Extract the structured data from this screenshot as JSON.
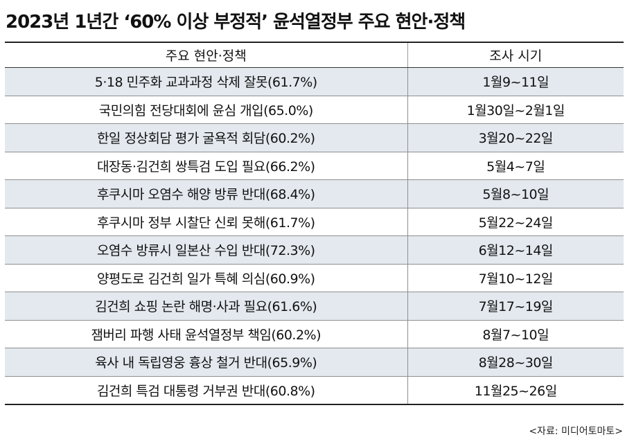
{
  "title": "2023년 1년간 ‘60% 이상 부정적’ 윤석열정부 주요 현안·정책",
  "table": {
    "headers": [
      "주요 현안·정책",
      "조사 시기"
    ],
    "rows": [
      {
        "issue": "5·18 민주화 교과과정 삭제 잘못(61.7%)",
        "period": "1월9~11일"
      },
      {
        "issue": "국민의힘 전당대회에 윤심 개입(65.0%)",
        "period": "1월30일~2월1일"
      },
      {
        "issue": "한일 정상회담 평가 굴욕적 회담(60.2%)",
        "period": "3월20~22일"
      },
      {
        "issue": "대장동·김건희 쌍특검 도입 필요(66.2%)",
        "period": "5월4~7일"
      },
      {
        "issue": "후쿠시마 오염수 해양 방류 반대(68.4%)",
        "period": "5월8~10일"
      },
      {
        "issue": "후쿠시마 정부 시찰단 신뢰 못해(61.7%)",
        "period": "5월22~24일"
      },
      {
        "issue": "오염수 방류시 일본산 수입 반대(72.3%)",
        "period": "6월12~14일"
      },
      {
        "issue": "양평도로 김건희 일가 특혜 의심(60.9%)",
        "period": "7월10~12일"
      },
      {
        "issue": "김건희 쇼핑 논란 해명·사과 필요(61.6%)",
        "period": "7월17~19일"
      },
      {
        "issue": "잼버리 파행 사태 윤석열정부 책임(60.2%)",
        "period": "8월7~10일"
      },
      {
        "issue": "육사 내 독립영웅 흉상 철거 반대(65.9%)",
        "period": "8월28~30일"
      },
      {
        "issue": "김건희 특검 대통령 거부권 반대(60.8%)",
        "period": "11월25~26일"
      }
    ]
  },
  "source": "<자료: 미디어토마토>",
  "colors": {
    "stripe": "#e3e9ef",
    "rule": "#222222"
  }
}
